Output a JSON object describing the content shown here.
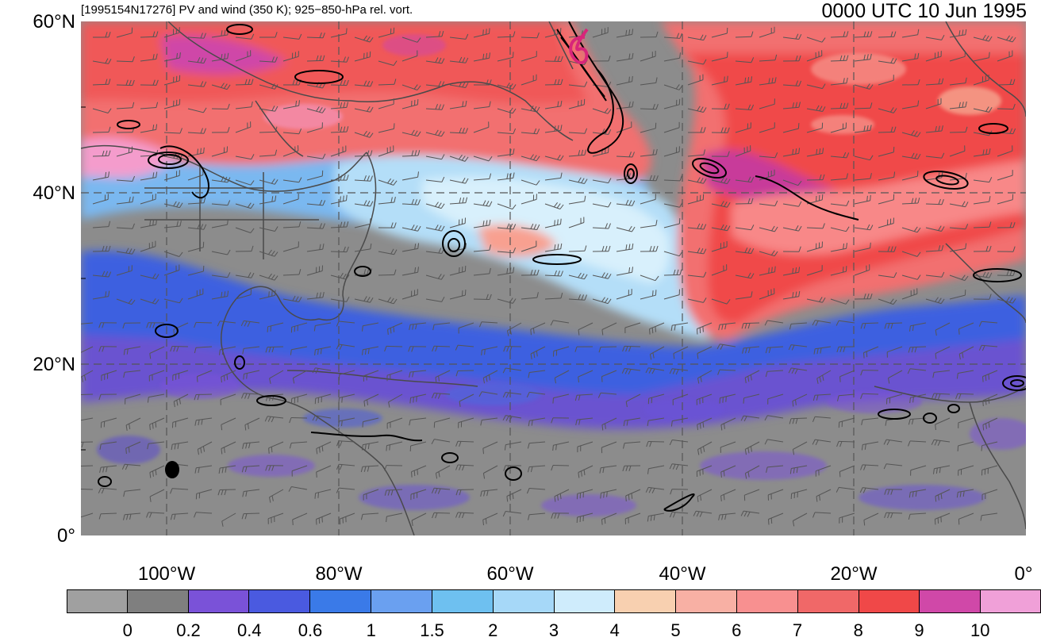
{
  "header": {
    "left_title": "[1995154N17276] PV and wind (350 K); 925−850-hPa rel. vort.",
    "right_title": "0000 UTC 10 Jun 1995"
  },
  "axes": {
    "lat_labels": [
      "60°N",
      "40°N",
      "20°N",
      "0°"
    ],
    "lon_labels": [
      "100°W",
      "80°W",
      "60°W",
      "40°W",
      "20°W",
      "0°"
    ]
  },
  "colorbar": {
    "colors": [
      "#a0a0a0",
      "#7f7f7f",
      "#7a52d8",
      "#4a5ae0",
      "#3a7ae8",
      "#6aa0f0",
      "#6ec0f0",
      "#a6d8f8",
      "#cfecfc",
      "#f8d0b0",
      "#f8b0a4",
      "#f89090",
      "#f06868",
      "#f04848",
      "#d048a8",
      "#f0a0d8"
    ],
    "labels": [
      "0",
      "0.2",
      "0.4",
      "0.6",
      "1",
      "1.5",
      "2",
      "3",
      "4",
      "5",
      "6",
      "7",
      "8",
      "9",
      "10"
    ]
  }
}
